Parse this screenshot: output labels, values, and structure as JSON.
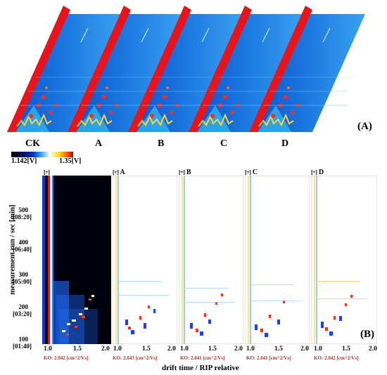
{
  "panel_a": {
    "label": "(A)",
    "sample_labels": [
      "CK",
      "A",
      "B",
      "C",
      "D"
    ]
  },
  "panel_b": {
    "label": "(B)",
    "colorbar": {
      "min_label": "1.142[V]",
      "max_label": "1.35[V]"
    },
    "subplots": [
      {
        "title": "CK",
        "ko": "KO: 2.042 [cm^2/Vs]"
      },
      {
        "title": "A",
        "ko": "KO: 2.043 [cm^2/Vs]"
      },
      {
        "title": "B",
        "ko": "KO: 2.041 [cm^2/Vs]"
      },
      {
        "title": "C",
        "ko": "KO: 2.041 [cm^2/Vs]"
      },
      {
        "title": "D",
        "ko": "KO: 2.042 [cm^2/Vs]"
      }
    ],
    "expand_symbol": "[+]",
    "y_axis": {
      "label": "measurement run / sec [min]",
      "ticks": [
        {
          "run": "500",
          "time": "[08:20]"
        },
        {
          "run": "400",
          "time": "[06:40]"
        },
        {
          "run": "300",
          "time": "[05:00]"
        },
        {
          "run": "200",
          "time": "[03:20]"
        },
        {
          "run": "100",
          "time": "[01:40]"
        }
      ]
    },
    "x_axis": {
      "label": "drift time / RIP relative",
      "tick_labels": [
        "1.0",
        "1.5",
        "2.0"
      ]
    }
  }
}
